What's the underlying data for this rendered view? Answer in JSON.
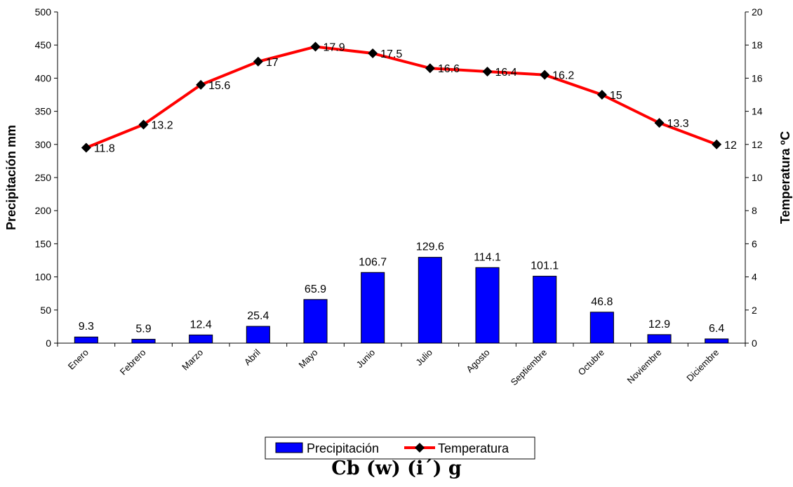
{
  "chart_data": {
    "type": "bar+line",
    "categories": [
      "Enero",
      "Febrero",
      "Marzo",
      "Abril",
      "Mayo",
      "Junio",
      "Julio",
      "Agosto",
      "Septiembre",
      "Octubre",
      "Noviembre",
      "Diciembre"
    ],
    "series": [
      {
        "name": "Precipitación",
        "type": "bar",
        "axis": "left",
        "values": [
          9.3,
          5.9,
          12.4,
          25.4,
          65.9,
          106.7,
          129.6,
          114.1,
          101.1,
          46.8,
          12.9,
          6.4
        ],
        "labels": [
          "9.3",
          "5.9",
          "12.4",
          "25.4",
          "65.9",
          "106.7",
          "129.6",
          "114.1",
          "101.1",
          "46.8",
          "12.9",
          "6.4"
        ],
        "color": "#0000ff"
      },
      {
        "name": "Temperatura",
        "type": "line",
        "axis": "right",
        "values": [
          11.8,
          13.2,
          15.6,
          17,
          17.9,
          17.5,
          16.6,
          16.4,
          16.2,
          15,
          13.3,
          12
        ],
        "labels": [
          "11.8",
          "13.2",
          "15.6",
          "17",
          "17.9",
          "17.5",
          "16.6",
          "16.4",
          "16.2",
          "15",
          "13.3",
          "12"
        ],
        "color": "#ff0000",
        "marker": "diamond",
        "marker_color": "#000000"
      }
    ],
    "ylabel": "Precipitación mm",
    "y2label": "Temperatura ºC",
    "ylim": [
      0,
      500
    ],
    "y2lim": [
      0,
      20
    ],
    "yticks": [
      "0",
      "50",
      "100",
      "150",
      "200",
      "250",
      "300",
      "350",
      "400",
      "450",
      "500"
    ],
    "y2ticks": [
      "0",
      "2",
      "4",
      "6",
      "8",
      "10",
      "12",
      "14",
      "16",
      "18",
      "20"
    ],
    "grid": false,
    "legend": "bottom",
    "caption": "Cb (w) (i´) g"
  }
}
